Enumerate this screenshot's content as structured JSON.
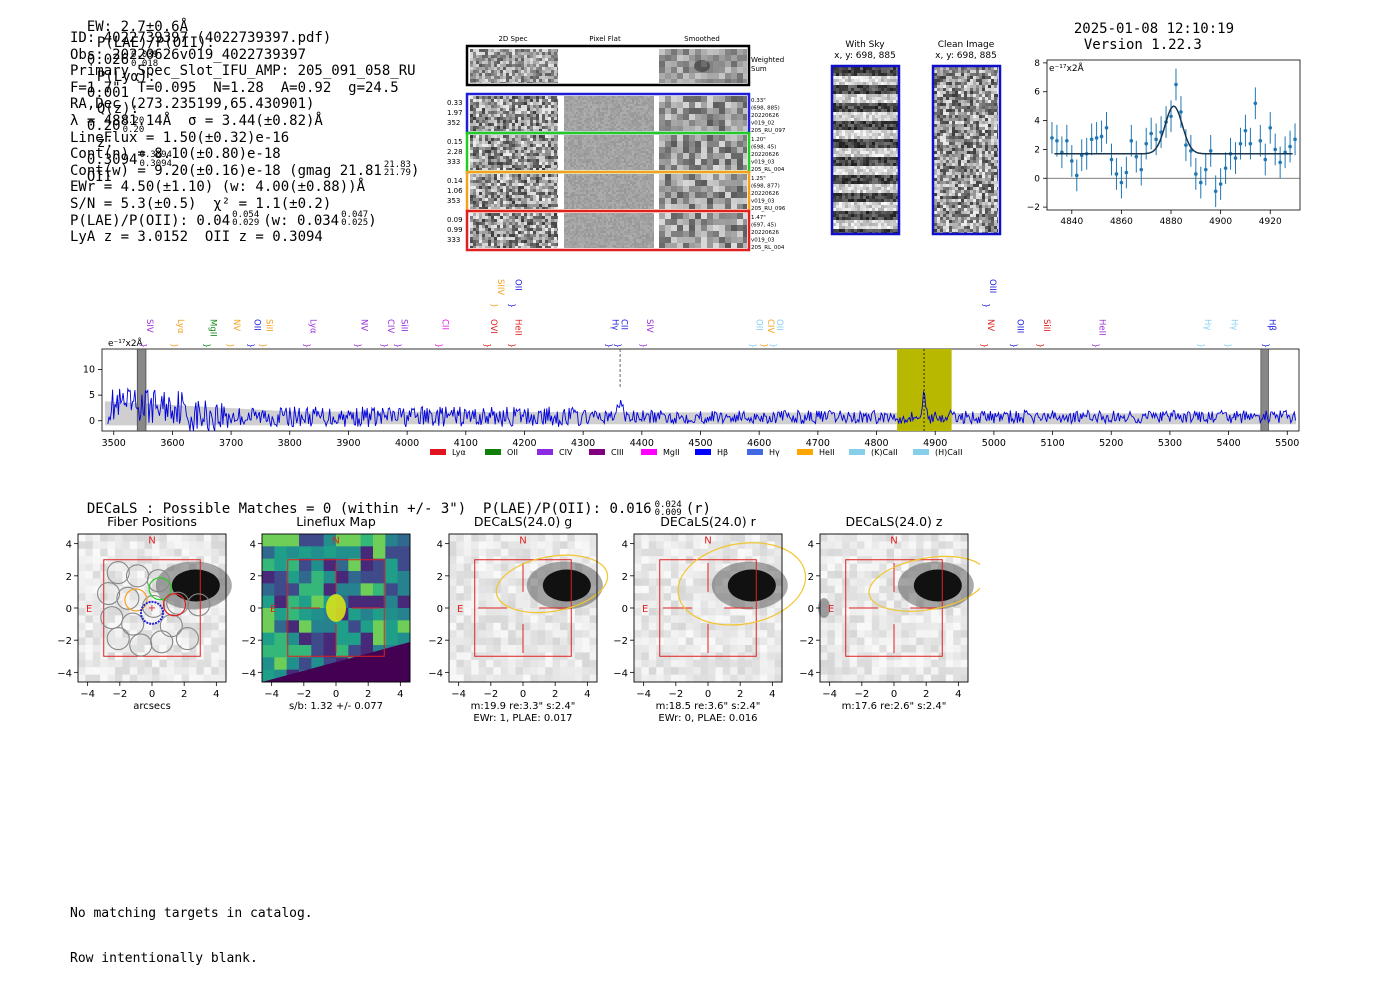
{
  "header": {
    "ew": "EW: 2.7±0.6Å",
    "plae_label": "P(LAE)/P(OII):",
    "plae_val": "0.026",
    "plae_up": "0.039",
    "plae_lo": "0.018",
    "plya_label": "P(Lyα):",
    "plya_val": "0.001",
    "qz_label": "Q(z):",
    "qz_val": "0.20",
    "qz_up": "0.20",
    "qz_lo": "0.20",
    "z_label": "z:",
    "z_val": "0.3094",
    "z_up": "0.3094",
    "z_lo": "0.3094",
    "z_line": "OII",
    "datetime": "2025-01-08 12:10:19",
    "version": "Version 1.22.3"
  },
  "info": {
    "id": "ID: 4022739397 (4022739397.pdf)",
    "obs": "Obs: 20220626v019_4022739397",
    "primary": "Primary Spec_Slot_IFU_AMP: 205_091_058_RU",
    "fiber": "F=1.7\"  T=0.095  N=1.28  A=0.92  g=24.5",
    "radec": "RA,Dec (273.235199,65.430901)",
    "lambda": "λ = 4881.14Å  σ = 3.44(±0.82)Å",
    "lineflux": "LineFlux = 1.50(±0.32)e-16",
    "contn": "Cont(n) = 8.10(±0.80)e-18",
    "contw": "Cont(w) = 9.20(±0.16)e-18 (gmag 21.81",
    "contw_up": "21.83",
    "contw_lo": "21.79",
    "contw_end": ")",
    "ewr": "EWr = 4.50(±1.10) (w: 4.00(±0.88))Å",
    "sn": "S/N = 5.3(±0.5)  χ² = 1.1(±0.2)",
    "plae": "P(LAE)/P(OII): 0.04",
    "plae_up": "0.054",
    "plae_lo": "0.029",
    "plae_w": "(w: 0.034",
    "plae_w_up": "0.047",
    "plae_w_lo": "0.025",
    "plae_end": ")",
    "lyaz": "LyA z = 3.0152  OII z = 0.3094"
  },
  "cutouts": {
    "col_labels": [
      "2D Spec",
      "Pixel Flat",
      "Smoothed"
    ],
    "weighted_sum": [
      "Weighted",
      "Sum"
    ],
    "rows": [
      {
        "left": [
          "0.33",
          "1.97",
          "352"
        ],
        "right": [
          "0.33\"",
          "(698, 885)",
          "20220626",
          "v019_02",
          "205_RU_097"
        ],
        "color": "#1f1fd6"
      },
      {
        "left": [
          "0.15",
          "2.28",
          "333"
        ],
        "right": [
          "1.20\"",
          "(698, 45)",
          "20220626",
          "v019_03",
          "205_RL_004"
        ],
        "color": "#22cc22"
      },
      {
        "left": [
          "0.14",
          "1.06",
          "353"
        ],
        "right": [
          "1.25\"",
          "(698, 877)",
          "20220626",
          "v019_03",
          "205_RU_096"
        ],
        "color": "#f5a020"
      },
      {
        "left": [
          "0.09",
          "0.99",
          "333"
        ],
        "right": [
          "1.47\"",
          "(697, 45)",
          "20220626",
          "v019_03",
          "205_RL_004"
        ],
        "color": "#e02020"
      }
    ]
  },
  "sky": {
    "with_title": "With Sky",
    "with_coords": "x, y: 698, 885",
    "clean_title": "Clean Image",
    "clean_coords": "x, y: 698, 885"
  },
  "zoom_chart_data": {
    "type": "scatter",
    "unit_label": "e⁻¹⁷x2Å",
    "xticks": [
      4840,
      4860,
      4880,
      4900,
      4920
    ],
    "yticks": [
      -2,
      0,
      2,
      4,
      6,
      8
    ],
    "xlim": [
      4830,
      4932
    ],
    "ylim": [
      -2.2,
      8.2
    ],
    "continuum": 1.7,
    "gauss_center": 4881.1,
    "gauss_amp": 3.3,
    "gauss_sigma": 3.44,
    "x": [
      4832,
      4834,
      4836,
      4838,
      4840,
      4842,
      4844,
      4846,
      4848,
      4850,
      4852,
      4854,
      4856,
      4858,
      4860,
      4862,
      4864,
      4866,
      4868,
      4870,
      4872,
      4874,
      4876,
      4878,
      4880,
      4882,
      4884,
      4886,
      4888,
      4890,
      4892,
      4894,
      4896,
      4898,
      4900,
      4902,
      4904,
      4906,
      4908,
      4910,
      4912,
      4914,
      4916,
      4918,
      4920,
      4922,
      4924,
      4926,
      4928,
      4930
    ],
    "y": [
      2.8,
      2.6,
      1.8,
      2.6,
      1.2,
      0.2,
      1.6,
      1.7,
      2.7,
      2.8,
      2.9,
      3.5,
      1.3,
      0.3,
      -0.3,
      0.4,
      2.6,
      1.5,
      0.6,
      2.4,
      3.1,
      2.7,
      3.2,
      3.9,
      4.3,
      6.5,
      4.6,
      2.3,
      1.9,
      0.3,
      -0.3,
      0.6,
      1.9,
      -0.9,
      -0.4,
      0.7,
      1.7,
      1.4,
      2.4,
      3.3,
      2.4,
      5.2,
      2.6,
      1.3,
      3.5,
      2.0,
      1.1,
      1.8,
      2.2,
      2.7
    ],
    "err": 1.1
  },
  "spectrum": {
    "chart_data": {
      "type": "line",
      "unit_label": "e⁻¹⁷x2Å",
      "xlim": [
        3480,
        5520
      ],
      "ylim": [
        -2,
        14
      ],
      "xticks": [
        3500,
        3600,
        3700,
        3800,
        3900,
        4000,
        4100,
        4200,
        4300,
        4400,
        4500,
        4600,
        4700,
        4800,
        4900,
        5000,
        5100,
        5200,
        5300,
        5400,
        5500
      ],
      "yticks": [
        0,
        5,
        10
      ],
      "highlight": [
        4835,
        4928
      ],
      "line_center": 4881,
      "hatched": [
        [
          3540,
          3555
        ],
        [
          5455,
          5468
        ]
      ],
      "dashed": [
        4363
      ],
      "lines": [
        {
          "name": "SIV",
          "x": 3552,
          "color": "#9b30d9"
        },
        {
          "name": "Lyα",
          "x": 3604,
          "color": "#f5a020"
        },
        {
          "name": "MgII",
          "x": 3660,
          "color": "#1a8a1a"
        },
        {
          "name": "NV",
          "x": 3700,
          "color": "#f5a020"
        },
        {
          "name": "OII",
          "x": 3735,
          "color": "#2020e0"
        },
        {
          "name": "SiII",
          "x": 3755,
          "color": "#f5a020"
        },
        {
          "name": "Lyα",
          "x": 3830,
          "color": "#9b30d9"
        },
        {
          "name": "NV",
          "x": 3917,
          "color": "#9b30d9"
        },
        {
          "name": "CIV",
          "x": 3962,
          "color": "#9b30d9"
        },
        {
          "name": "SiII",
          "x": 3985,
          "color": "#9b30d9"
        },
        {
          "name": "CII",
          "x": 4055,
          "color": "#e020e0"
        },
        {
          "name": "OVI",
          "x": 4138,
          "color": "#e02020"
        },
        {
          "name": "HeII",
          "x": 4180,
          "color": "#e02020"
        },
        {
          "name": "Hγ",
          "x": 4345,
          "color": "#2020e0"
        },
        {
          "name": "CII",
          "x": 4360,
          "color": "#2020e0"
        },
        {
          "name": "SIV",
          "x": 4404,
          "color": "#9b30d9"
        },
        {
          "name": "OII",
          "x": 4590,
          "color": "#87cefa"
        },
        {
          "name": "CIV",
          "x": 4610,
          "color": "#f5a020"
        },
        {
          "name": "OII",
          "x": 4625,
          "color": "#87cefa"
        },
        {
          "name": "NV",
          "x": 4985,
          "color": "#e02020"
        },
        {
          "name": "OIII",
          "x": 5035,
          "color": "#2020e0"
        },
        {
          "name": "SiII",
          "x": 5080,
          "color": "#e02020"
        },
        {
          "name": "HeII",
          "x": 5175,
          "color": "#9b30d9"
        },
        {
          "name": "Hγ",
          "x": 5355,
          "color": "#87cefa"
        },
        {
          "name": "Hγ",
          "x": 5400,
          "color": "#87cefa"
        },
        {
          "name": "Hβ",
          "x": 5465,
          "color": "#2020e0"
        }
      ],
      "upper_lines": [
        {
          "name": "SIIV",
          "x": 4150,
          "color": "#f5a020"
        },
        {
          "name": "OII",
          "x": 4180,
          "color": "#2020e0"
        },
        {
          "name": "OIII",
          "x": 4988,
          "color": "#2020e0"
        }
      ],
      "legend": [
        {
          "name": "Lyα",
          "color": "#e0141e"
        },
        {
          "name": "OII",
          "color": "#10800a"
        },
        {
          "name": "CIV",
          "color": "#8a2be2"
        },
        {
          "name": "CIII",
          "color": "#800080"
        },
        {
          "name": "MgII",
          "color": "#ff00ff"
        },
        {
          "name": "Hβ",
          "color": "#0000ff"
        },
        {
          "name": "Hγ",
          "color": "#4169e1"
        },
        {
          "name": "HeII",
          "color": "#ffa500"
        },
        {
          "name": "(K)CaII",
          "color": "#87ceeb"
        },
        {
          "name": "(H)CaII",
          "color": "#87ceeb"
        }
      ]
    }
  },
  "decals": {
    "summary": "DECaLS : Possible Matches = 0 (within +/- 3\")  P(LAE)/P(OII): 0.016",
    "summary_up": "0.024",
    "summary_lo": "0.009",
    "summary_end": "(r)",
    "panels": [
      {
        "title": "Fiber Positions",
        "xlabel": "arcsecs",
        "sub1": "",
        "sub2": ""
      },
      {
        "title": "Lineflux Map",
        "xlabel": "s/b: 1.32 +/- 0.077",
        "sub1": "",
        "sub2": ""
      },
      {
        "title": "DECaLS(24.0) g",
        "xlabel": "m:19.9  re:3.3\"  s:2.4\"",
        "sub1": "EWr: 1, PLAE: 0.017",
        "sub2": ""
      },
      {
        "title": "DECaLS(24.0) r",
        "xlabel": "m:18.5  re:3.6\"  s:2.4\"",
        "sub1": "EWr: 0, PLAE: 0.016",
        "sub2": ""
      },
      {
        "title": "DECaLS(24.0) z",
        "xlabel": "m:17.6  re:2.6\"  s:2.4\"",
        "sub1": "",
        "sub2": ""
      }
    ],
    "ticks": [
      "−4",
      "−2",
      "0",
      "2",
      "4"
    ],
    "compass_n": "N",
    "compass_e": "E"
  },
  "footer": {
    "line1": "No matching targets in catalog.",
    "line2": "Row intentionally blank."
  }
}
